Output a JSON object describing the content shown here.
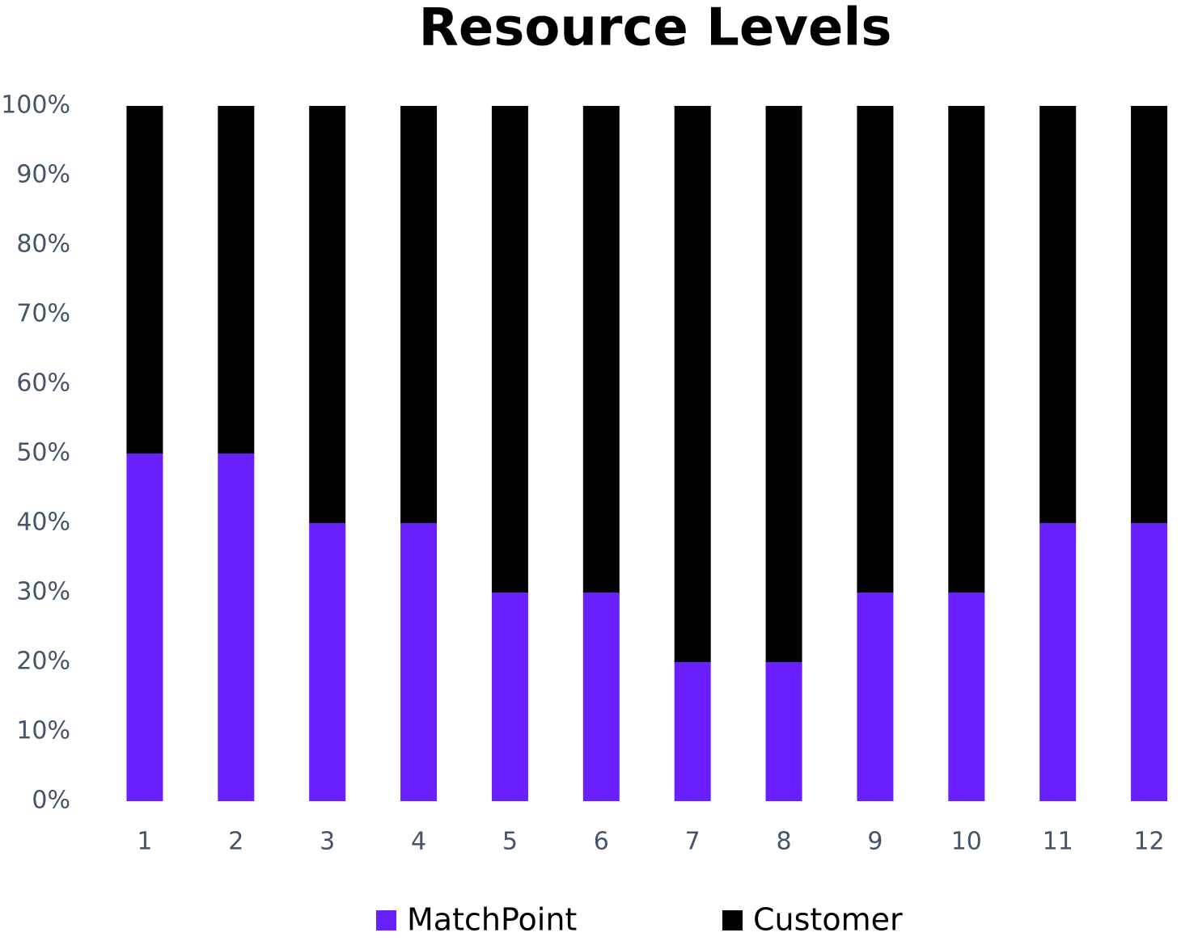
{
  "chart_data": {
    "type": "stacked-bar",
    "title": "Resource Levels",
    "categories": [
      "1",
      "2",
      "3",
      "4",
      "5",
      "6",
      "7",
      "8",
      "9",
      "10",
      "11",
      "12"
    ],
    "series": [
      {
        "name": "MatchPoint",
        "color": "#6a1fff",
        "values": [
          50,
          50,
          40,
          40,
          30,
          30,
          20,
          20,
          30,
          30,
          40,
          40
        ]
      },
      {
        "name": "Customer",
        "color": "#000000",
        "values": [
          50,
          50,
          60,
          60,
          70,
          70,
          80,
          80,
          70,
          70,
          60,
          60
        ]
      }
    ],
    "ylim": [
      0,
      100
    ],
    "yticks": [
      {
        "value": 0,
        "label": "0%"
      },
      {
        "value": 10,
        "label": "10%"
      },
      {
        "value": 20,
        "label": "20%"
      },
      {
        "value": 30,
        "label": "30%"
      },
      {
        "value": 40,
        "label": "40%"
      },
      {
        "value": 50,
        "label": "50%"
      },
      {
        "value": 60,
        "label": "60%"
      },
      {
        "value": 70,
        "label": "70%"
      },
      {
        "value": 80,
        "label": "80%"
      },
      {
        "value": 90,
        "label": "90%"
      },
      {
        "value": 100,
        "label": "100%"
      }
    ],
    "grid": false,
    "legend": "bottom"
  }
}
